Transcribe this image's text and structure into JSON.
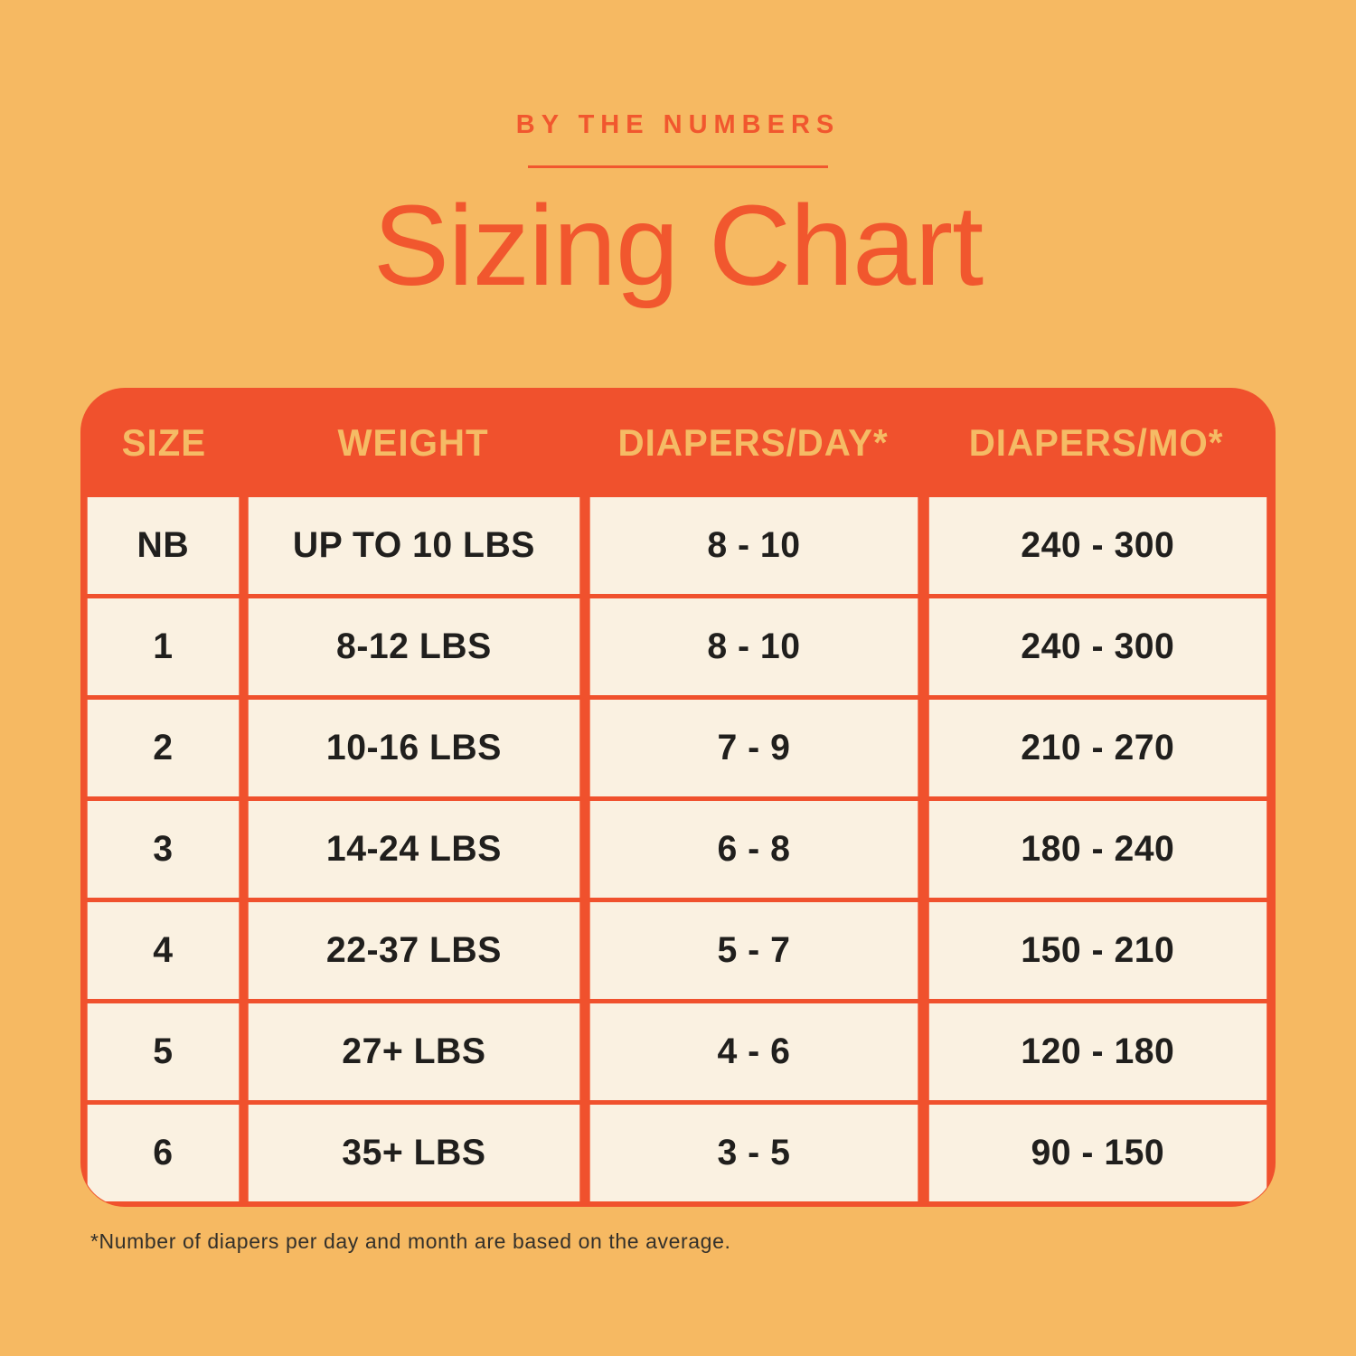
{
  "colors": {
    "page-bg": "#F6B962",
    "accent": "#F1572E",
    "table-red": "#F0512D",
    "header-text": "#F5BB65",
    "cell-bg": "#FAF1E1",
    "cell-text": "#201F1D",
    "footnote-text": "#33302B"
  },
  "header": {
    "eyebrow": "BY THE NUMBERS",
    "title": "Sizing Chart"
  },
  "chart_data": {
    "type": "table",
    "title": "Sizing Chart",
    "columns": [
      "SIZE",
      "WEIGHT",
      "DIAPERS/DAY*",
      "DIAPERS/MO*"
    ],
    "rows": [
      [
        "NB",
        "UP TO 10 LBS",
        "8 - 10",
        "240 - 300"
      ],
      [
        "1",
        "8-12 LBS",
        "8 - 10",
        "240 - 300"
      ],
      [
        "2",
        "10-16 LBS",
        "7 - 9",
        "210 - 270"
      ],
      [
        "3",
        "14-24 LBS",
        "6 - 8",
        "180 - 240"
      ],
      [
        "4",
        "22-37 LBS",
        "5 - 7",
        "150 - 210"
      ],
      [
        "5",
        "27+ LBS",
        "4 - 6",
        "120 - 180"
      ],
      [
        "6",
        "35+ LBS",
        "3 - 5",
        "90 - 150"
      ]
    ],
    "footnote": "*Number of diapers per day and month are based on the average."
  }
}
